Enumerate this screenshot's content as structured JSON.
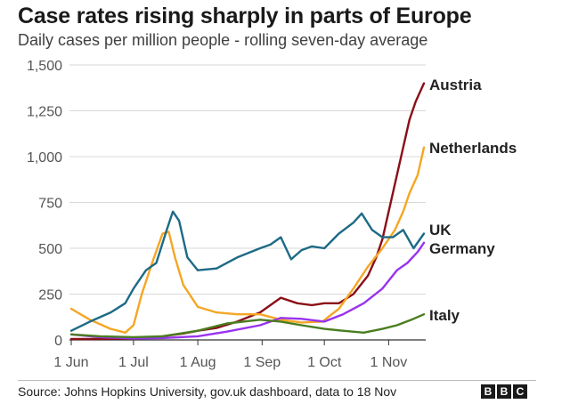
{
  "chart_data": {
    "type": "line",
    "title": "Case rates rising sharply in parts of Europe",
    "subtitle": "Daily cases per million people - rolling seven-day average",
    "ylim": [
      0,
      1500
    ],
    "yticks": [
      "0",
      "250",
      "500",
      "750",
      "1,000",
      "1,250",
      "1,500"
    ],
    "ytick_values": [
      0,
      250,
      500,
      750,
      1000,
      1250,
      1500
    ],
    "x_range": [
      "2020-06-01",
      "2020-11-18"
    ],
    "xticks": [
      "1 Jun",
      "1 Jul",
      "1 Aug",
      "1 Sep",
      "1 Oct",
      "1 Nov"
    ],
    "xtick_dates": [
      "2020-06-01",
      "2020-07-01",
      "2020-08-01",
      "2020-09-01",
      "2020-10-01",
      "2020-11-01"
    ],
    "grid": true,
    "legend": "direct labels at line ends",
    "series": [
      {
        "name": "Austria",
        "color": "#8a0f17",
        "x": [
          "2020-06-01",
          "2020-06-15",
          "2020-07-01",
          "2020-07-15",
          "2020-07-25",
          "2020-08-01",
          "2020-08-10",
          "2020-08-20",
          "2020-08-31",
          "2020-09-10",
          "2020-09-18",
          "2020-09-25",
          "2020-10-01",
          "2020-10-08",
          "2020-10-15",
          "2020-10-22",
          "2020-10-26",
          "2020-10-29",
          "2020-11-01",
          "2020-11-05",
          "2020-11-08",
          "2020-11-11",
          "2020-11-14",
          "2020-11-18"
        ],
        "y": [
          5,
          5,
          8,
          20,
          35,
          50,
          65,
          100,
          150,
          230,
          200,
          190,
          200,
          200,
          250,
          350,
          450,
          550,
          700,
          900,
          1050,
          1200,
          1300,
          1400
        ]
      },
      {
        "name": "Netherlands",
        "color": "#f5a623",
        "x": [
          "2020-06-01",
          "2020-06-10",
          "2020-06-20",
          "2020-06-27",
          "2020-07-01",
          "2020-07-05",
          "2020-07-10",
          "2020-07-15",
          "2020-07-18",
          "2020-07-21",
          "2020-07-25",
          "2020-08-01",
          "2020-08-10",
          "2020-08-20",
          "2020-08-31",
          "2020-09-10",
          "2020-09-20",
          "2020-09-30",
          "2020-10-08",
          "2020-10-15",
          "2020-10-22",
          "2020-10-29",
          "2020-11-04",
          "2020-11-08",
          "2020-11-11",
          "2020-11-15",
          "2020-11-18"
        ],
        "y": [
          170,
          110,
          60,
          40,
          80,
          250,
          420,
          580,
          590,
          450,
          300,
          180,
          150,
          140,
          140,
          110,
          95,
          100,
          170,
          280,
          400,
          500,
          600,
          700,
          800,
          900,
          1050
        ]
      },
      {
        "name": "UK",
        "color": "#1d6a86",
        "x": [
          "2020-06-01",
          "2020-06-10",
          "2020-06-20",
          "2020-06-27",
          "2020-07-01",
          "2020-07-07",
          "2020-07-12",
          "2020-07-17",
          "2020-07-20",
          "2020-07-23",
          "2020-07-27",
          "2020-08-01",
          "2020-08-10",
          "2020-08-20",
          "2020-08-31",
          "2020-09-05",
          "2020-09-10",
          "2020-09-15",
          "2020-09-20",
          "2020-09-25",
          "2020-10-01",
          "2020-10-08",
          "2020-10-15",
          "2020-10-19",
          "2020-10-24",
          "2020-10-29",
          "2020-11-03",
          "2020-11-08",
          "2020-11-13",
          "2020-11-18"
        ],
        "y": [
          50,
          100,
          150,
          200,
          280,
          380,
          420,
          600,
          700,
          650,
          450,
          380,
          390,
          450,
          500,
          520,
          560,
          440,
          490,
          510,
          500,
          580,
          640,
          690,
          600,
          560,
          560,
          600,
          500,
          580
        ]
      },
      {
        "name": "Germany",
        "color": "#9933ee",
        "x": [
          "2020-06-01",
          "2020-06-15",
          "2020-07-01",
          "2020-07-15",
          "2020-08-01",
          "2020-08-15",
          "2020-08-31",
          "2020-09-10",
          "2020-09-20",
          "2020-10-01",
          "2020-10-10",
          "2020-10-20",
          "2020-10-29",
          "2020-11-05",
          "2020-11-10",
          "2020-11-15",
          "2020-11-18"
        ],
        "y": [
          30,
          15,
          8,
          10,
          20,
          45,
          80,
          120,
          115,
          100,
          140,
          200,
          280,
          380,
          420,
          480,
          530
        ]
      },
      {
        "name": "Italy",
        "color": "#4a7d1f",
        "x": [
          "2020-06-01",
          "2020-06-15",
          "2020-07-01",
          "2020-07-15",
          "2020-08-01",
          "2020-08-15",
          "2020-08-31",
          "2020-09-10",
          "2020-09-20",
          "2020-10-01",
          "2020-10-10",
          "2020-10-20",
          "2020-10-29",
          "2020-11-05",
          "2020-11-12",
          "2020-11-18"
        ],
        "y": [
          30,
          20,
          15,
          20,
          50,
          90,
          110,
          100,
          80,
          60,
          50,
          40,
          60,
          80,
          110,
          140
        ]
      }
    ]
  },
  "source": "Source: Johns Hopkins University, gov.uk dashboard, data to 18 Nov",
  "logo": [
    "B",
    "B",
    "C"
  ]
}
